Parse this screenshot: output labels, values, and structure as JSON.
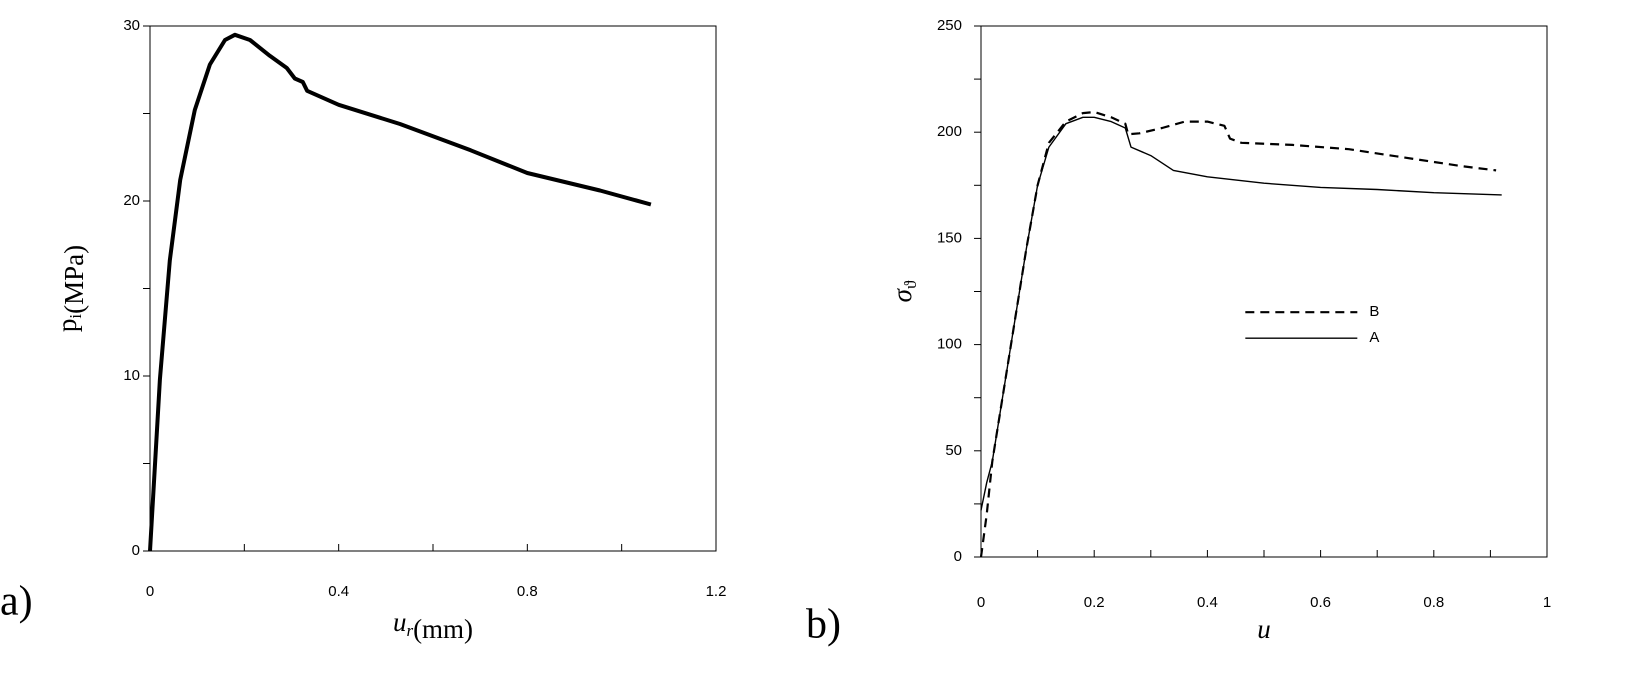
{
  "chart_data": [
    {
      "type": "line",
      "panel_label": "a)",
      "xlabel": {
        "main": "u",
        "sub": "r",
        "unit": "(mm)"
      },
      "ylabel": {
        "main": "p",
        "sub": "i",
        "unit": "(MPa)"
      },
      "xlim": [
        0,
        1.2
      ],
      "ylim": [
        0,
        30
      ],
      "xticks": [
        0,
        0.4,
        0.8,
        1.2
      ],
      "yticks": [
        0,
        10,
        20,
        30
      ],
      "xminor": [
        0.2,
        0.6,
        1.0
      ],
      "yminor": [
        5,
        15,
        25
      ],
      "series": [
        {
          "color": "#000000",
          "style": "solid",
          "width": 4,
          "x": [
            0,
            0.021,
            0.042,
            0.064,
            0.095,
            0.127,
            0.159,
            0.18,
            0.212,
            0.254,
            0.29,
            0.307,
            0.324,
            0.333,
            0.4,
            0.53,
            0.68,
            0.8,
            0.954,
            1.062
          ],
          "values": [
            0,
            9.8,
            16.6,
            21.2,
            25.2,
            27.8,
            29.2,
            29.5,
            29.2,
            28.3,
            27.6,
            27.0,
            26.8,
            26.3,
            25.5,
            24.4,
            22.9,
            21.6,
            20.6,
            19.8
          ]
        }
      ]
    },
    {
      "type": "line",
      "panel_label": "b)",
      "xlabel": {
        "main": "u"
      },
      "ylabel": {
        "main": "σ",
        "sub": "ϑ"
      },
      "xlim": [
        0,
        1
      ],
      "ylim": [
        0,
        250
      ],
      "xticks": [
        0,
        0.2,
        0.4,
        0.6,
        0.8,
        1
      ],
      "yticks": [
        0,
        50,
        100,
        150,
        200,
        250
      ],
      "xminor": [
        0.1,
        0.3,
        0.5,
        0.7,
        0.9
      ],
      "yminor": [
        25,
        75,
        125,
        175,
        225
      ],
      "legend": "center",
      "series": [
        {
          "name": "B",
          "color": "#000000",
          "style": "dashed",
          "width": 2.2,
          "x": [
            0,
            0.01,
            0.02,
            0.05,
            0.08,
            0.1,
            0.12,
            0.15,
            0.18,
            0.2,
            0.23,
            0.255,
            0.26,
            0.28,
            0.32,
            0.36,
            0.4,
            0.43,
            0.44,
            0.46,
            0.55,
            0.65,
            0.75,
            0.85,
            0.91
          ],
          "values": [
            0,
            20,
            45,
            95,
            145,
            175,
            195,
            205,
            209,
            209.5,
            207,
            204,
            199,
            199.5,
            202,
            205,
            205,
            203,
            197,
            195,
            194,
            192,
            188,
            184,
            182
          ]
        },
        {
          "name": "A",
          "color": "#000000",
          "style": "solid",
          "width": 1.4,
          "x": [
            0,
            0.01,
            0.02,
            0.05,
            0.08,
            0.1,
            0.12,
            0.15,
            0.18,
            0.2,
            0.23,
            0.255,
            0.265,
            0.3,
            0.34,
            0.4,
            0.5,
            0.6,
            0.7,
            0.8,
            0.92
          ],
          "values": [
            22,
            35,
            45,
            95,
            145,
            175,
            193,
            204,
            207,
            207,
            205,
            202,
            193,
            189,
            182,
            179,
            176,
            174,
            173,
            171.5,
            170.5
          ]
        }
      ]
    }
  ]
}
